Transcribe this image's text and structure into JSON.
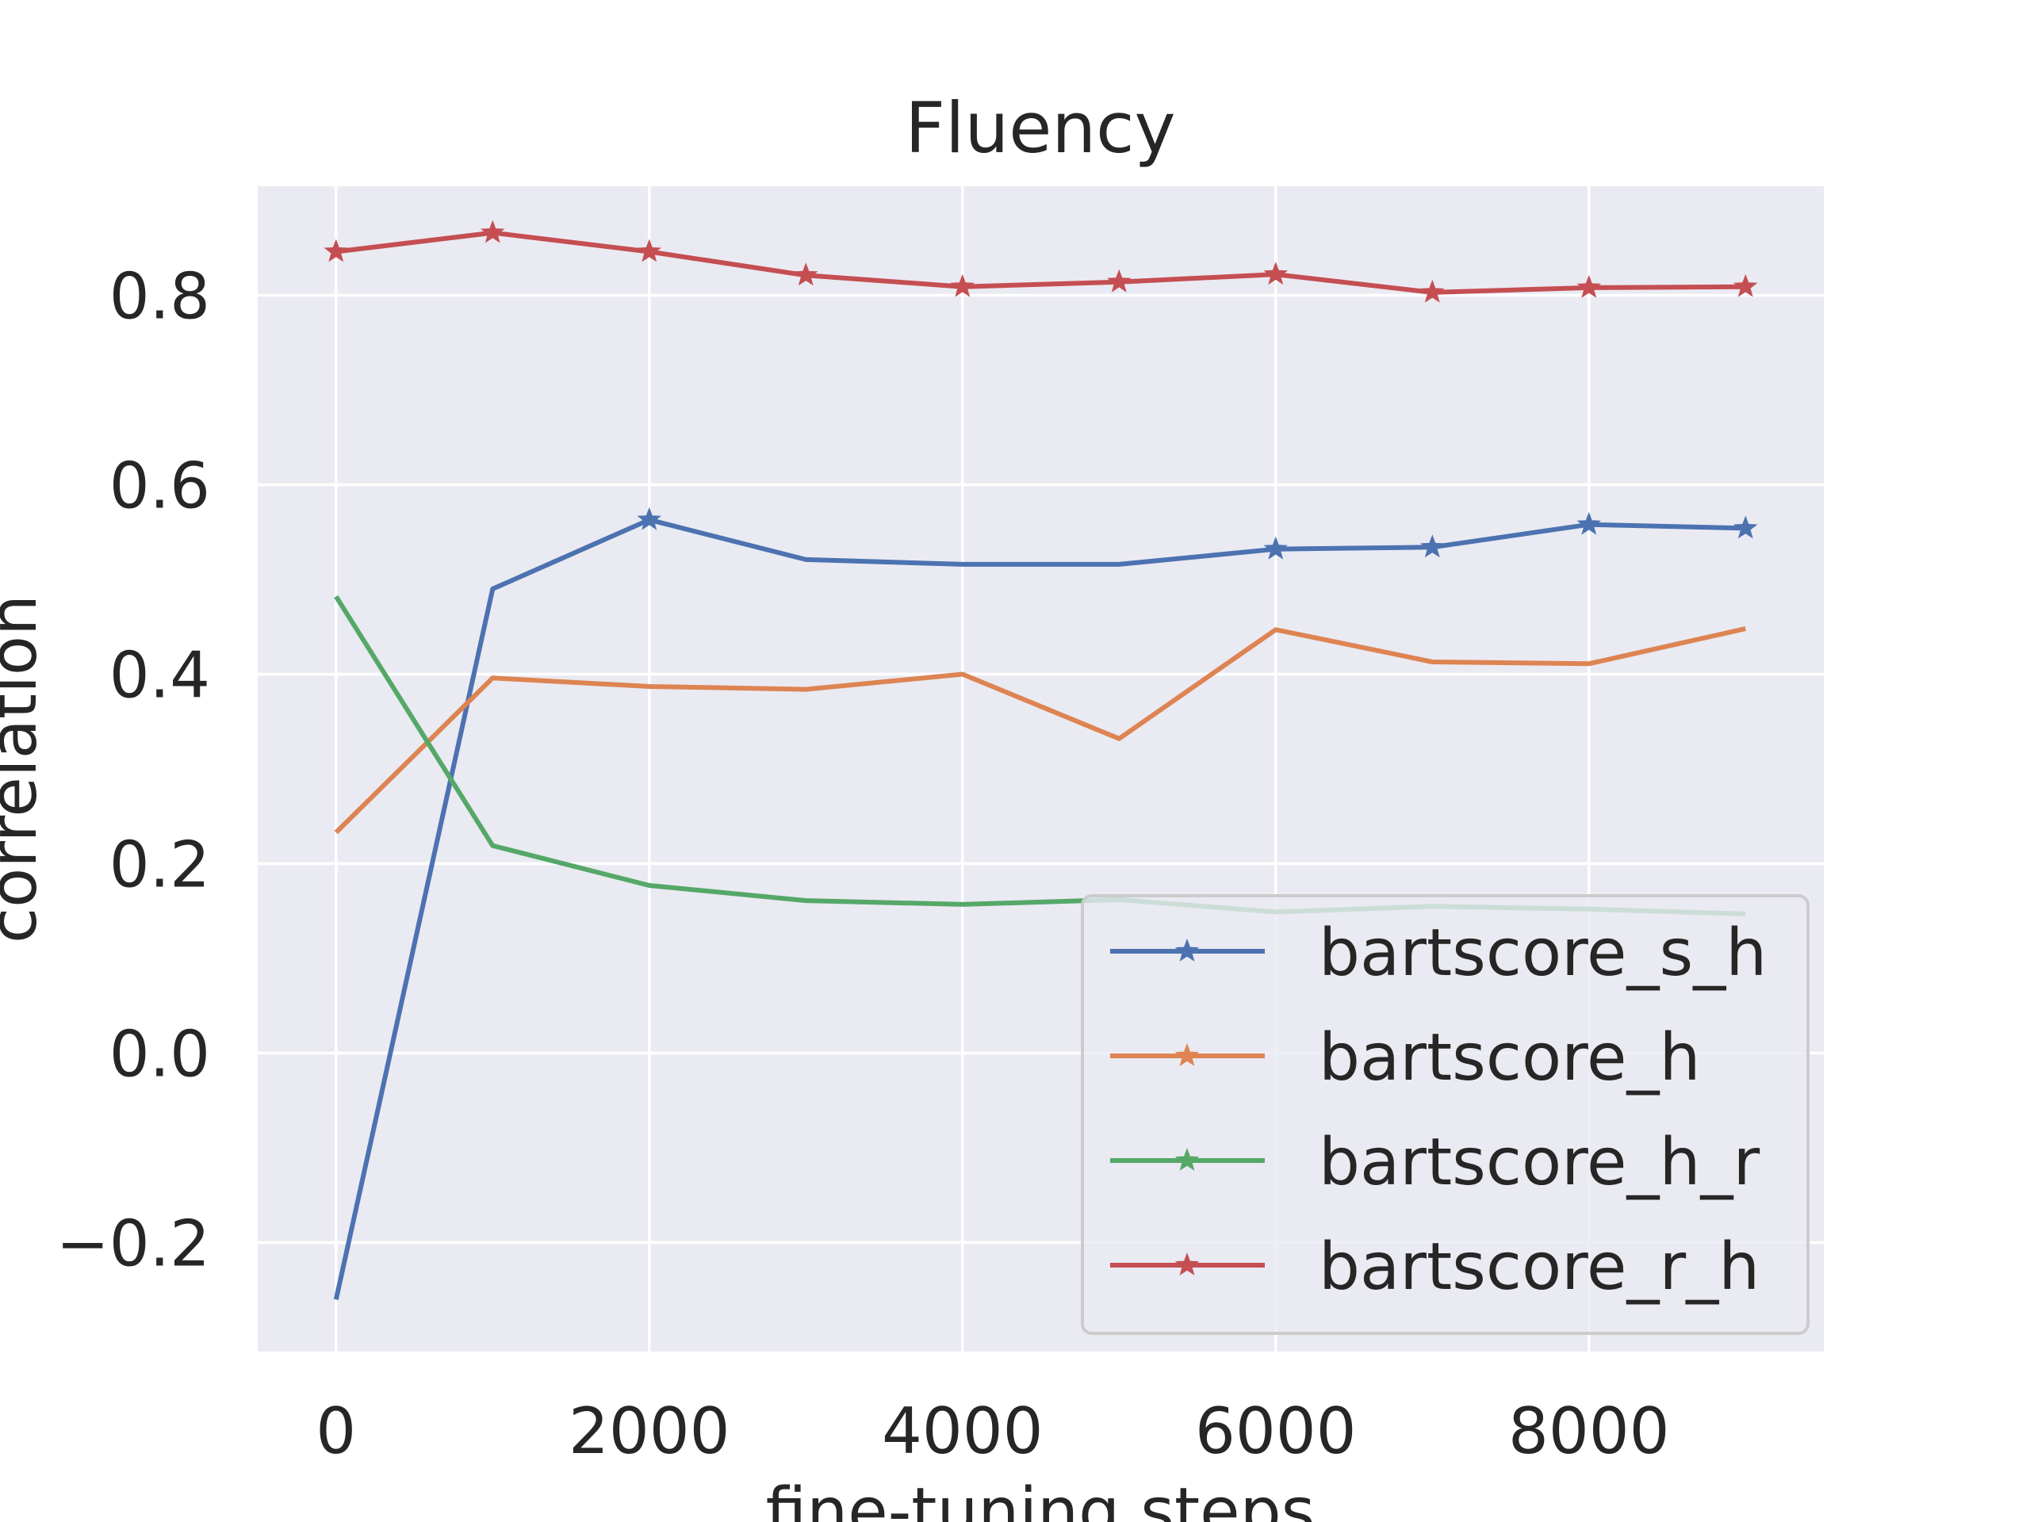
{
  "chart_data": {
    "type": "line",
    "title": "Fluency",
    "xlabel": "fine-tuning steps",
    "ylabel": "correlation",
    "xlim": [
      -500,
      9500
    ],
    "ylim": [
      -0.315,
      0.915
    ],
    "grid": true,
    "legend_position": "lower-right",
    "x_ticks": [
      0,
      2000,
      4000,
      6000,
      8000
    ],
    "x_tick_labels": [
      "0",
      "2000",
      "4000",
      "6000",
      "8000"
    ],
    "y_ticks": [
      -0.2,
      0.0,
      0.2,
      0.4,
      0.6,
      0.8
    ],
    "y_tick_labels": [
      "−0.2",
      "0.0",
      "0.2",
      "0.4",
      "0.6",
      "0.8"
    ],
    "x": [
      0,
      1000,
      2000,
      3000,
      4000,
      5000,
      6000,
      7000,
      8000,
      9000
    ],
    "series": [
      {
        "name": "bartscore_s_h",
        "color": "#4c72b0",
        "marker": "star",
        "values": [
          -0.26,
          0.49,
          0.563,
          0.521,
          0.516,
          0.516,
          0.532,
          0.534,
          0.558,
          0.554
        ],
        "marked_points": [
          2,
          6,
          7,
          8,
          9
        ]
      },
      {
        "name": "bartscore_h",
        "color": "#dd8452",
        "marker": "star",
        "values": [
          0.233,
          0.396,
          0.387,
          0.384,
          0.4,
          0.332,
          0.447,
          0.413,
          0.411,
          0.448
        ],
        "marked_points": []
      },
      {
        "name": "bartscore_h_r",
        "color": "#55a868",
        "marker": "star",
        "values": [
          0.482,
          0.219,
          0.177,
          0.161,
          0.157,
          0.162,
          0.149,
          0.155,
          0.152,
          0.147
        ],
        "marked_points": []
      },
      {
        "name": "bartscore_r_h",
        "color": "#c44e52",
        "marker": "star",
        "values": [
          0.846,
          0.866,
          0.846,
          0.821,
          0.809,
          0.814,
          0.822,
          0.803,
          0.808,
          0.809
        ],
        "marked_points": [
          0,
          1,
          2,
          3,
          4,
          5,
          6,
          7,
          8,
          9
        ]
      }
    ]
  },
  "colors": {
    "plot_background": "#eaeaf2",
    "grid": "#ffffff",
    "text": "#262626",
    "legend_border": "#cccccc"
  }
}
